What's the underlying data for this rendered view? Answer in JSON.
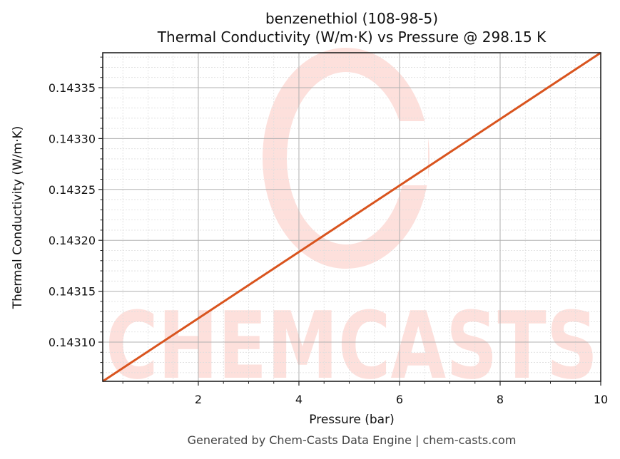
{
  "chart_data": {
    "type": "line",
    "title": "benzenethiol (108-98-5)",
    "subtitle": "Thermal Conductivity (W/m·K) vs Pressure @ 298.15 K",
    "xlabel": "Pressure (bar)",
    "ylabel": "Thermal Conductivity (W/m·K)",
    "xlim": [
      0.1,
      10
    ],
    "ylim": [
      0.1430615,
      0.1433843
    ],
    "x_ticks": [
      2,
      4,
      6,
      8,
      10
    ],
    "x_tick_labels": [
      "2",
      "4",
      "6",
      "8",
      "10"
    ],
    "y_ticks": [
      0.1431,
      0.14315,
      0.1432,
      0.14325,
      0.1433,
      0.14335
    ],
    "y_tick_labels": [
      "0.14310",
      "0.14315",
      "0.14320",
      "0.14325",
      "0.14330",
      "0.14335"
    ],
    "grid": true,
    "minor_grid": true,
    "legend": null,
    "series": [
      {
        "name": "Thermal Conductivity",
        "color": "#d9541e",
        "x": [
          0.1,
          2,
          4,
          6,
          8,
          10
        ],
        "values": [
          0.1430615,
          0.1431234,
          0.1431886,
          0.1432538,
          0.1433191,
          0.1433843
        ]
      }
    ]
  },
  "watermark": {
    "text": "CHEMCASTS",
    "color": "#fde0dc"
  },
  "footer": "Generated by Chem-Casts Data Engine | chem-casts.com"
}
